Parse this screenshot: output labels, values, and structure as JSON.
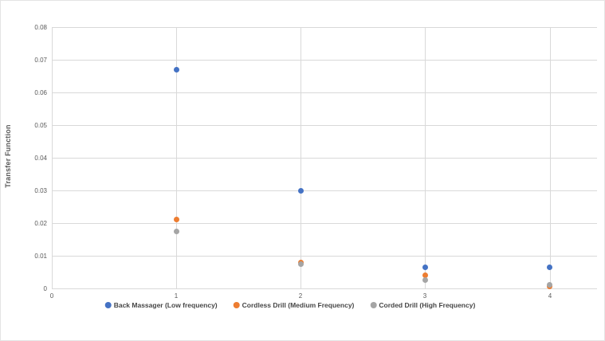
{
  "chart_data": {
    "type": "scatter",
    "title": "",
    "xlabel": "",
    "ylabel": "Transfer Function",
    "xlim": [
      0,
      4.38
    ],
    "ylim": [
      0,
      0.08
    ],
    "grid": true,
    "legend_position": "bottom",
    "x_tick_values": [
      0,
      1,
      2,
      3,
      4
    ],
    "x_tick_labels": [
      "0",
      "1",
      "2",
      "3",
      "4"
    ],
    "y_tick_values": [
      0,
      0.01,
      0.02,
      0.03,
      0.04,
      0.05,
      0.06,
      0.07,
      0.08
    ],
    "y_tick_labels": [
      "0",
      "0.01",
      "0.02",
      "0.03",
      "0.04",
      "0.05",
      "0.06",
      "0.07",
      "0.08"
    ],
    "series": [
      {
        "name": "Back Massager (Low frequency)",
        "color": "#4472c4",
        "points": [
          {
            "x": 1,
            "y": 0.067
          },
          {
            "x": 2,
            "y": 0.03
          },
          {
            "x": 3,
            "y": 0.0065
          },
          {
            "x": 4,
            "y": 0.0065
          }
        ]
      },
      {
        "name": "Cordless Drill (Medium Frequency)",
        "color": "#ed7d31",
        "points": [
          {
            "x": 1,
            "y": 0.021
          },
          {
            "x": 2,
            "y": 0.008
          },
          {
            "x": 3,
            "y": 0.004
          },
          {
            "x": 4,
            "y": 0.0005
          }
        ]
      },
      {
        "name": "Corded Drill (High Frequency)",
        "color": "#a5a5a5",
        "points": [
          {
            "x": 1,
            "y": 0.0175
          },
          {
            "x": 2,
            "y": 0.0075
          },
          {
            "x": 3,
            "y": 0.0025
          },
          {
            "x": 4,
            "y": 0.001
          }
        ]
      }
    ]
  }
}
